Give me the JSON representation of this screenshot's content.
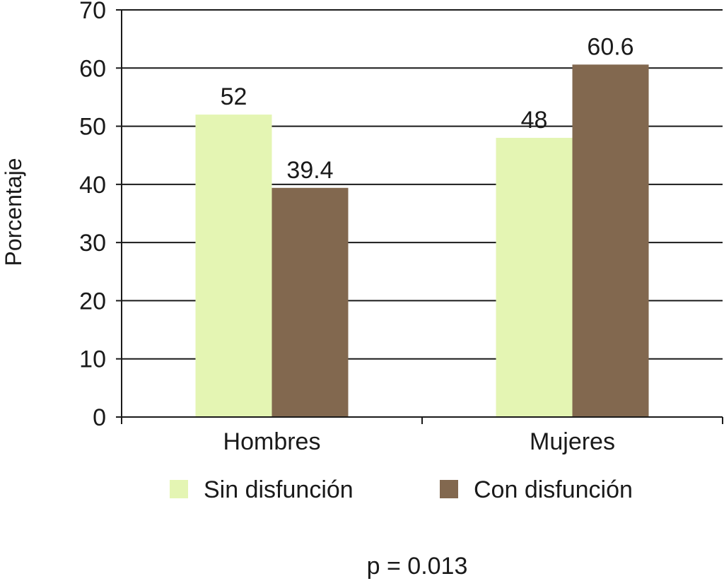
{
  "chart_data": {
    "type": "bar",
    "categories": [
      "Hombres",
      "Mujeres"
    ],
    "series": [
      {
        "name": "Sin disfunción",
        "values": [
          52,
          48
        ],
        "color": "#e4f5b3"
      },
      {
        "name": "Con disfunción",
        "values": [
          39.4,
          60.6
        ],
        "color": "#82684f"
      }
    ],
    "data_labels": [
      [
        "52",
        "48"
      ],
      [
        "39.4",
        "60.6"
      ]
    ],
    "ylabel": "Porcentaje",
    "ylim": [
      0,
      70
    ],
    "yticks": [
      0,
      10,
      20,
      30,
      40,
      50,
      60,
      70
    ],
    "grid": true,
    "legend_position": "bottom",
    "annotation": "p = 0.013"
  }
}
